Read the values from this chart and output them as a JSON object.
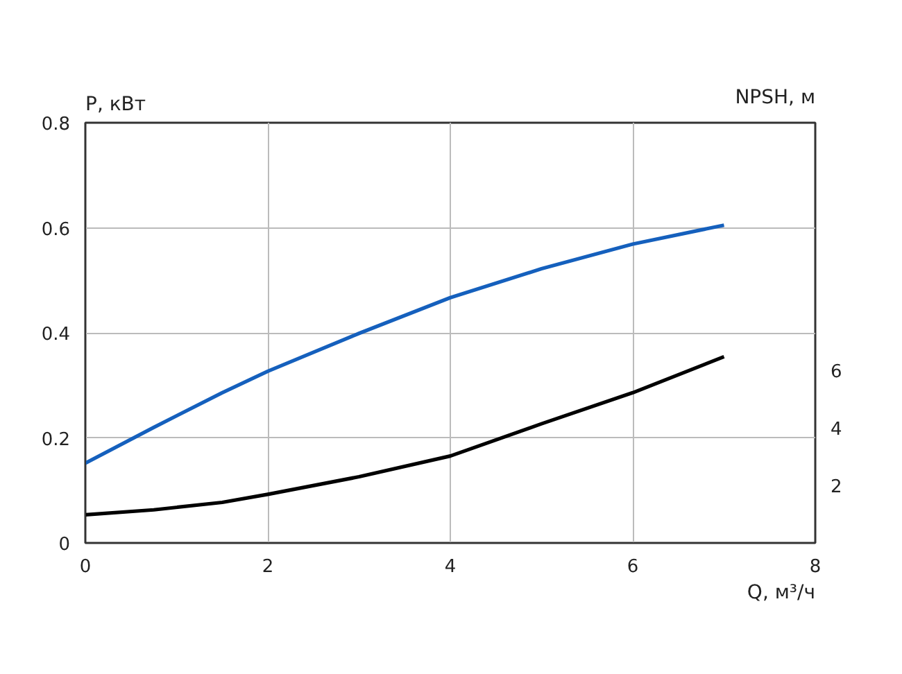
{
  "chart_data": {
    "type": "line",
    "xlabel": "Q, м³/ч",
    "ylabel": "P, кВт",
    "y2label": "NPSH, м",
    "x": [
      0,
      0.75,
      1.5,
      2,
      3,
      4,
      5,
      6,
      7
    ],
    "series": [
      {
        "color": "#1560bd",
        "values": [
          0.152,
          0.22,
          0.286,
          0.327,
          0.399,
          0.467,
          0.522,
          0.569,
          0.605
        ]
      },
      {
        "color": "#000000",
        "axis": "y2",
        "values": [
          0.98,
          1.15,
          1.41,
          1.69,
          2.3,
          3.02,
          4.14,
          5.22,
          6.47
        ]
      }
    ],
    "xlim": [
      0,
      8
    ],
    "xticks": [
      0,
      2,
      4,
      6,
      8
    ],
    "ylim": [
      0,
      0.8
    ],
    "yticks": [
      0,
      0.2,
      0.4,
      0.6,
      0.8
    ],
    "y2lim": [
      0,
      14.6
    ],
    "y2ticks": [
      2,
      4,
      6
    ],
    "grid": true,
    "marker": "none",
    "line_style": "solid"
  }
}
